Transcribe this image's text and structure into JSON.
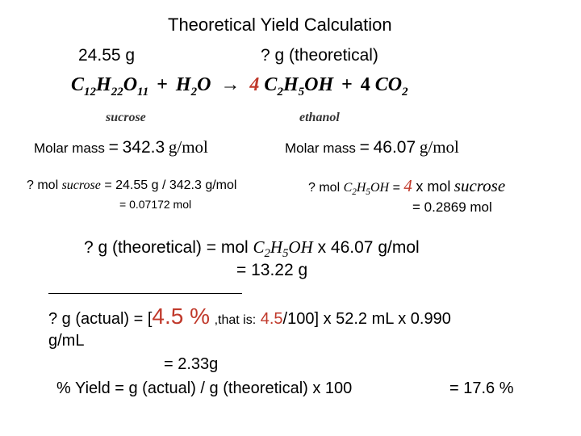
{
  "title": "Theoretical Yield Calculation",
  "given_mass": "24.55 g",
  "unknown_mass": "? g  (theoretical)",
  "equation": {
    "sucrose": {
      "p1": "C",
      "s1": "12",
      "p2": "H",
      "s2": "22",
      "p3": "O",
      "s3": "11"
    },
    "plus": "+",
    "water": {
      "p1": "H",
      "s1": "2",
      "p2": "O"
    },
    "arrow": "→",
    "coef_ethanol": "4",
    "ethanol": {
      "p1": "C",
      "s1": "2",
      "p2": "H",
      "s2": "5",
      "p3": "OH"
    },
    "coef_co2": "4",
    "co2": {
      "p1": "CO",
      "s1": "2"
    }
  },
  "labels": {
    "sucrose": "sucrose",
    "ethanol": "ethanol"
  },
  "molar_mass": {
    "prefix": "Molar mass",
    "eq": "=",
    "sucrose_value": "342.3",
    "ethanol_value": "46.07",
    "unit": "g/mol"
  },
  "calc_sucrose": {
    "q": "? mol",
    "name": "sucrose",
    "rest": "= 24.55 g / 342.3 g/mol",
    "result": "= 0.07172 mol"
  },
  "calc_ethanol": {
    "q": "? mol",
    "formula": {
      "p1": "C",
      "s1": "2",
      "p2": "H",
      "s2": "5",
      "p3": "OH"
    },
    "eq": "=",
    "ratio": "4",
    "x": "x  mol",
    "name": "sucrose",
    "result": "= 0.2869 mol"
  },
  "theoretical": {
    "lead": "? g  (theoretical) = mol",
    "formula": {
      "p1": "C",
      "s1": "2",
      "p2": "H",
      "s2": "5",
      "p3": "OH"
    },
    "tail": "x 46.07 g/mol",
    "result": "= 13.22 g"
  },
  "actual": {
    "lead": "? g (actual) = [",
    "pct": "4.5 %",
    "thatis": ",that is:",
    "val": "4.5",
    "after": "/100] x 52.2 mL x 0.990",
    "unit": "g/mL",
    "result": "= 2.33g"
  },
  "yield": {
    "formula": "% Yield = g (actual) / g (theoretical) x 100",
    "result": "= 17.6 %"
  },
  "colors": {
    "accent": "#c0392b",
    "text": "#000000"
  }
}
